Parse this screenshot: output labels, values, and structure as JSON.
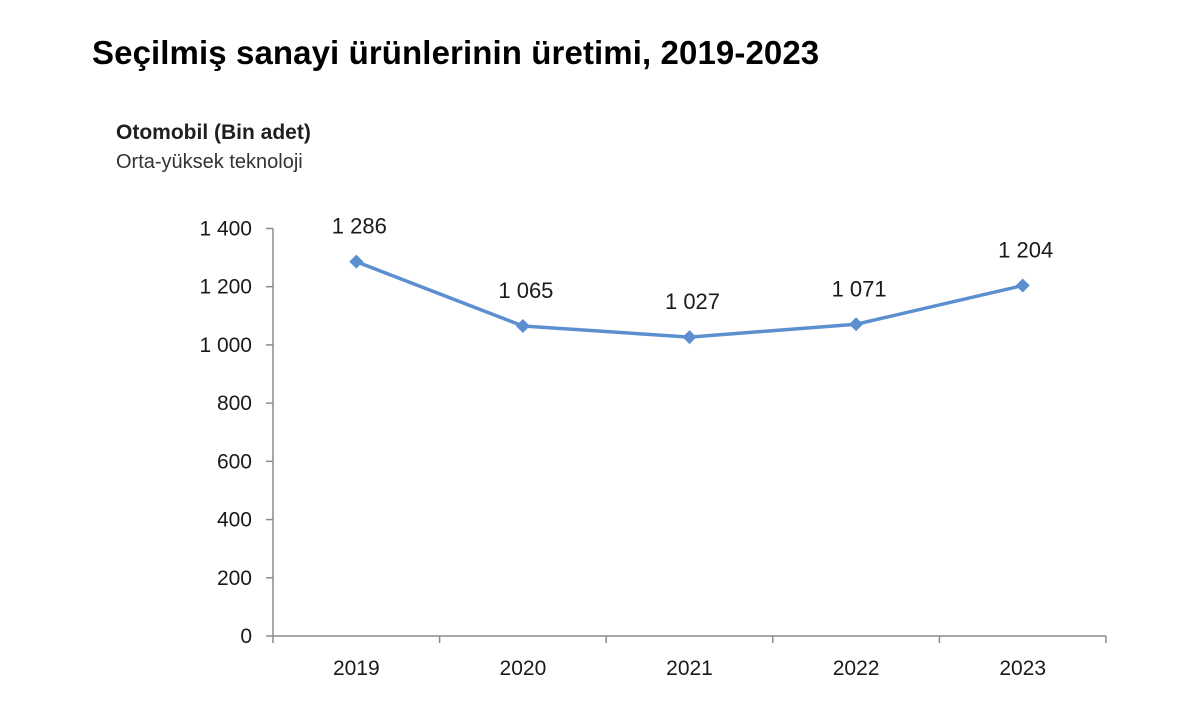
{
  "page": {
    "title": "Seçilmiş sanayi ürünlerinin üretimi, 2019-2023"
  },
  "chart_data": {
    "type": "line",
    "title": "Otomobil (Bin adet)",
    "subtitle": "Orta-yüksek teknoloji",
    "xlabel": "",
    "ylabel": "",
    "categories": [
      "2019",
      "2020",
      "2021",
      "2022",
      "2023"
    ],
    "series": [
      {
        "values": [
          1286,
          1065,
          1027,
          1071,
          1204
        ],
        "color": "#5b8fd0"
      }
    ],
    "data_labels": [
      "1 286",
      "1 065",
      "1 027",
      "1 071",
      "1 204"
    ],
    "ylim": [
      0,
      1400
    ],
    "yticks": [
      0,
      200,
      400,
      600,
      800,
      1000,
      1200,
      1400
    ],
    "ytick_labels": [
      "0",
      "200",
      "400",
      "600",
      "800",
      "1 000",
      "1 200",
      "1 400"
    ],
    "marker": "diamond",
    "grid": false,
    "legend": "none"
  }
}
